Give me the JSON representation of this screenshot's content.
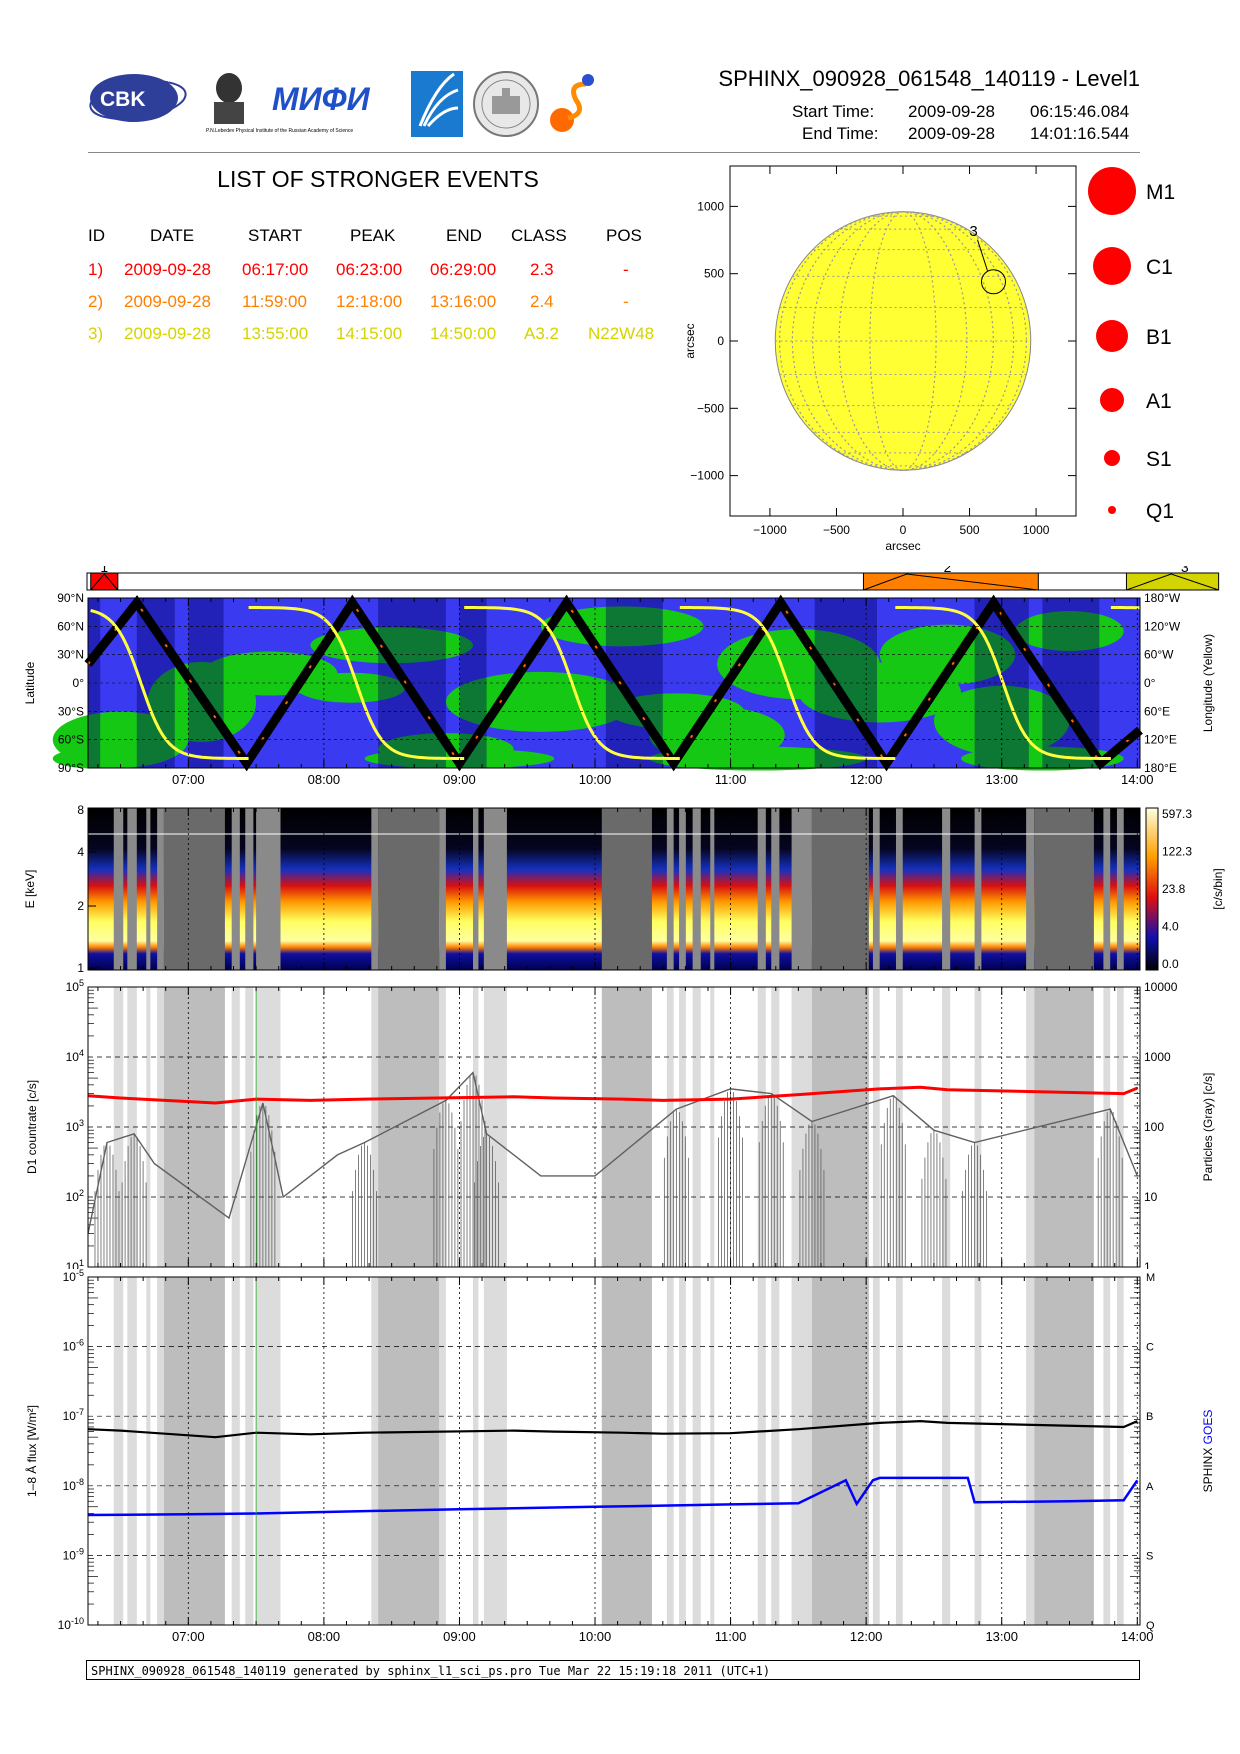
{
  "header": {
    "title": "SPHINX_090928_061548_140119 - Level1",
    "start_label": "Start Time:",
    "start_date": "2009-09-28",
    "start_clock": "06:15:46.084",
    "end_label": "End Time:",
    "end_date": "2009-09-28",
    "end_clock": "14:01:16.544",
    "logo_cbk": "CBK",
    "logo_pan": "PAN",
    "logo_mifi": "MИФИ",
    "logo_lebedev": "P.N.Lebedev Physical Institute of the Russian Academy of Science"
  },
  "events": {
    "title": "LIST OF STRONGER EVENTS",
    "columns": [
      "ID",
      "DATE",
      "START",
      "PEAK",
      "END",
      "CLASS",
      "POS"
    ],
    "rows": [
      {
        "id": "1)",
        "date": "2009-09-28",
        "start": "06:17:00",
        "peak": "06:23:00",
        "end": "06:29:00",
        "class": "2.3",
        "pos": "-",
        "color": "#ff0000"
      },
      {
        "id": "2)",
        "date": "2009-09-28",
        "start": "11:59:00",
        "peak": "12:18:00",
        "end": "13:16:00",
        "class": "2.4",
        "pos": "-",
        "color": "#ff7f00"
      },
      {
        "id": "3)",
        "date": "2009-09-28",
        "start": "13:55:00",
        "peak": "14:15:00",
        "end": "14:50:00",
        "class": "A3.2",
        "pos": "N22W48",
        "color": "#d4d400"
      }
    ]
  },
  "colors": {
    "event1": "#ff0000",
    "event2": "#ff7f00",
    "event3": "#d4d400",
    "sun": "#ffff33",
    "track_blue": "#3a3af0",
    "track_green": "#14c814",
    "saa_bar": "#000064",
    "eclipse_gray": "#bdbdbd",
    "sphinx_series": "#000000",
    "goes_series": "#0000ff",
    "counts_red": "#ff0000",
    "particles": "#606060"
  },
  "sun_map": {
    "x_label": "arcsec",
    "y_label": "arcsec",
    "x_ticks": [
      "-1000",
      "-500",
      "0",
      "500",
      "1000"
    ],
    "y_ticks": [
      "1000",
      "500",
      "0",
      "-500",
      "-1000"
    ],
    "event_marker": "3",
    "event_position_arcsec": [
      680,
      440
    ]
  },
  "class_scale": [
    "M1",
    "C1",
    "B1",
    "A1",
    "S1",
    "Q1"
  ],
  "event_strip": {
    "labels": [
      "1",
      "2",
      "3"
    ]
  },
  "chart_data": [
    {
      "type": "heatmap",
      "panel": "orbit-track",
      "ylabel": "Latitude",
      "y2label": "Longitude (Yellow)",
      "y_ticks": [
        "90°N",
        "60°N",
        "30°N",
        "0°",
        "30°S",
        "60°S",
        "90°S"
      ],
      "y2_ticks": [
        "180°W",
        "120°W",
        "60°W",
        "0°",
        "60°E",
        "120°E",
        "180°E"
      ],
      "x_ticks": [
        "07:00",
        "08:00",
        "09:00",
        "10:00",
        "11:00",
        "12:00",
        "13:00",
        "14:00"
      ],
      "xlim_hours": [
        6.26,
        14.02
      ],
      "lat_track_peaks_hours": [
        6.62,
        7.43,
        8.21,
        9.0,
        9.79,
        10.58,
        11.37,
        12.15,
        12.94,
        13.73
      ],
      "saa_intervals_hours": [
        [
          6.26,
          6.35
        ],
        [
          6.62,
          6.9
        ],
        [
          7.0,
          7.26
        ],
        [
          8.4,
          8.9
        ],
        [
          9.0,
          9.2
        ],
        [
          10.08,
          10.5
        ],
        [
          11.62,
          12.08
        ],
        [
          12.8,
          13.2
        ],
        [
          13.3,
          13.72
        ]
      ]
    },
    {
      "type": "heatmap",
      "panel": "spectrogram",
      "ylabel": "E [keV]",
      "zlabel": "[c/s/bin]",
      "y_ticks": [
        "8",
        "4",
        "2",
        "1"
      ],
      "z_ticks": [
        "597.3",
        "122.3",
        "23.8",
        "4.0",
        "0.0"
      ]
    },
    {
      "type": "line",
      "panel": "countrate",
      "ylabel": "D1 countrate [c/s]",
      "y2label": "Particles (Gray) [c/s]",
      "y_ticks": [
        "10^5",
        "10^4",
        "10^3",
        "10^2",
        "10^1"
      ],
      "y2_ticks": [
        "10000",
        "1000",
        "100",
        "10",
        "1"
      ],
      "ylim_log": [
        1,
        5
      ],
      "series": [
        {
          "name": "D1 countrate",
          "x": [
            6.26,
            6.5,
            7.2,
            7.5,
            7.9,
            8.3,
            9.4,
            9.7,
            10.2,
            10.5,
            11.0,
            11.5,
            12.1,
            12.4,
            12.6,
            13.9,
            14.0
          ],
          "y": [
            2800,
            2600,
            2200,
            2500,
            2400,
            2500,
            2700,
            2600,
            2500,
            2400,
            2500,
            2900,
            3500,
            3700,
            3400,
            3000,
            3600
          ]
        },
        {
          "name": "Particles (Gray)",
          "x": [
            6.26,
            6.4,
            6.6,
            6.75,
            7.3,
            7.55,
            7.7,
            8.1,
            8.3,
            8.9,
            9.1,
            9.2,
            9.6,
            10.0,
            10.6,
            11.0,
            11.3,
            11.6,
            12.2,
            12.5,
            12.8,
            13.8,
            14.0
          ],
          "y": [
            3,
            60,
            80,
            30,
            5,
            220,
            10,
            40,
            60,
            240,
            600,
            80,
            20,
            20,
            180,
            350,
            300,
            120,
            280,
            90,
            60,
            180,
            20
          ]
        }
      ]
    },
    {
      "type": "line",
      "panel": "flux",
      "ylabel": "1–8 Å flux [W/m²]",
      "y2label": "SPHINX GOES",
      "y2_ticks": [
        "M",
        "C",
        "B",
        "A",
        "S",
        "Q"
      ],
      "y_ticks": [
        "10^-5",
        "10^-6",
        "10^-7",
        "10^-8",
        "10^-9",
        "10^-10"
      ],
      "ylim_log": [
        -10,
        -5
      ],
      "series": [
        {
          "name": "SPHINX",
          "x": [
            6.26,
            6.5,
            7.2,
            7.5,
            7.9,
            8.3,
            9.4,
            9.7,
            10.2,
            10.5,
            11.0,
            11.5,
            12.1,
            12.4,
            12.6,
            13.9,
            14.0
          ],
          "y": [
            6.5e-08,
            6.2e-08,
            5e-08,
            5.8e-08,
            5.5e-08,
            5.8e-08,
            6.2e-08,
            6e-08,
            5.8e-08,
            5.6e-08,
            5.7e-08,
            6.5e-08,
            8e-08,
            8.5e-08,
            8e-08,
            7e-08,
            8.5e-08
          ]
        },
        {
          "name": "GOES",
          "x": [
            6.26,
            7.0,
            7.5,
            8.0,
            8.5,
            9.0,
            9.5,
            10.0,
            10.5,
            11.0,
            11.5,
            11.85,
            11.93,
            12.05,
            12.1,
            12.4,
            12.75,
            12.8,
            13.5,
            13.9,
            14.0
          ],
          "y": [
            3.8e-09,
            3.9e-09,
            4e-09,
            4.2e-09,
            4.4e-09,
            4.6e-09,
            4.8e-09,
            5e-09,
            5.2e-09,
            5.4e-09,
            5.6e-09,
            1.2e-08,
            5.5e-09,
            1.2e-08,
            1.3e-08,
            1.3e-08,
            1.3e-08,
            5.8e-09,
            6e-09,
            6.2e-09,
            1.2e-08
          ]
        }
      ]
    }
  ],
  "footer": {
    "text": "SPHINX_090928_061548_140119 generated by sphinx_l1_sci_ps.pro Tue Mar 22 15:19:18 2011 (UTC+1)"
  }
}
